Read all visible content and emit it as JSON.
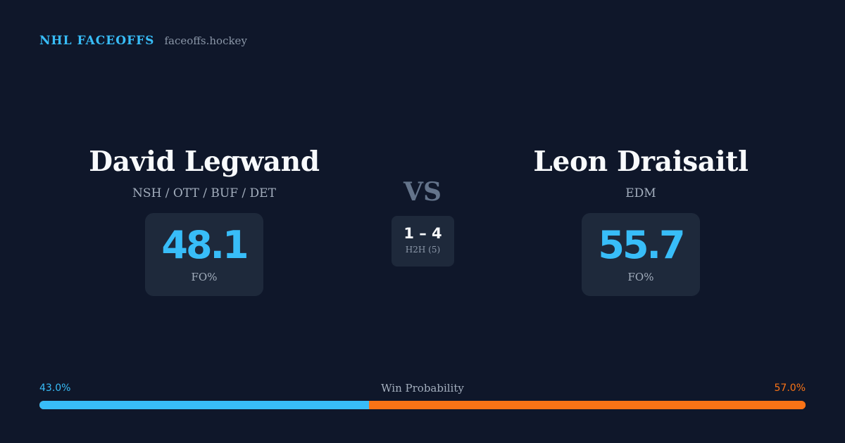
{
  "header": {
    "brand": "NHL FACEOFFS",
    "domain": "faceoffs.hockey"
  },
  "player_left": {
    "name": "David Legwand",
    "teams": "NSH / OTT / BUF / DET",
    "stat_value": "48.1",
    "stat_label": "FO%"
  },
  "player_right": {
    "name": "Leon Draisaitl",
    "teams": "EDM",
    "stat_value": "55.7",
    "stat_label": "FO%"
  },
  "versus": {
    "label": "VS",
    "h2h_score": "1 – 4",
    "h2h_label": "H2H (5)"
  },
  "win_probability": {
    "title": "Win Probability",
    "left_label": "43.0%",
    "right_label": "57.0%",
    "left_fraction": 0.43,
    "right_fraction": 0.57
  },
  "colors": {
    "background": "#0f172a",
    "card": "#1e293b",
    "accent_left": "#38bdf8",
    "accent_right": "#f97316"
  }
}
